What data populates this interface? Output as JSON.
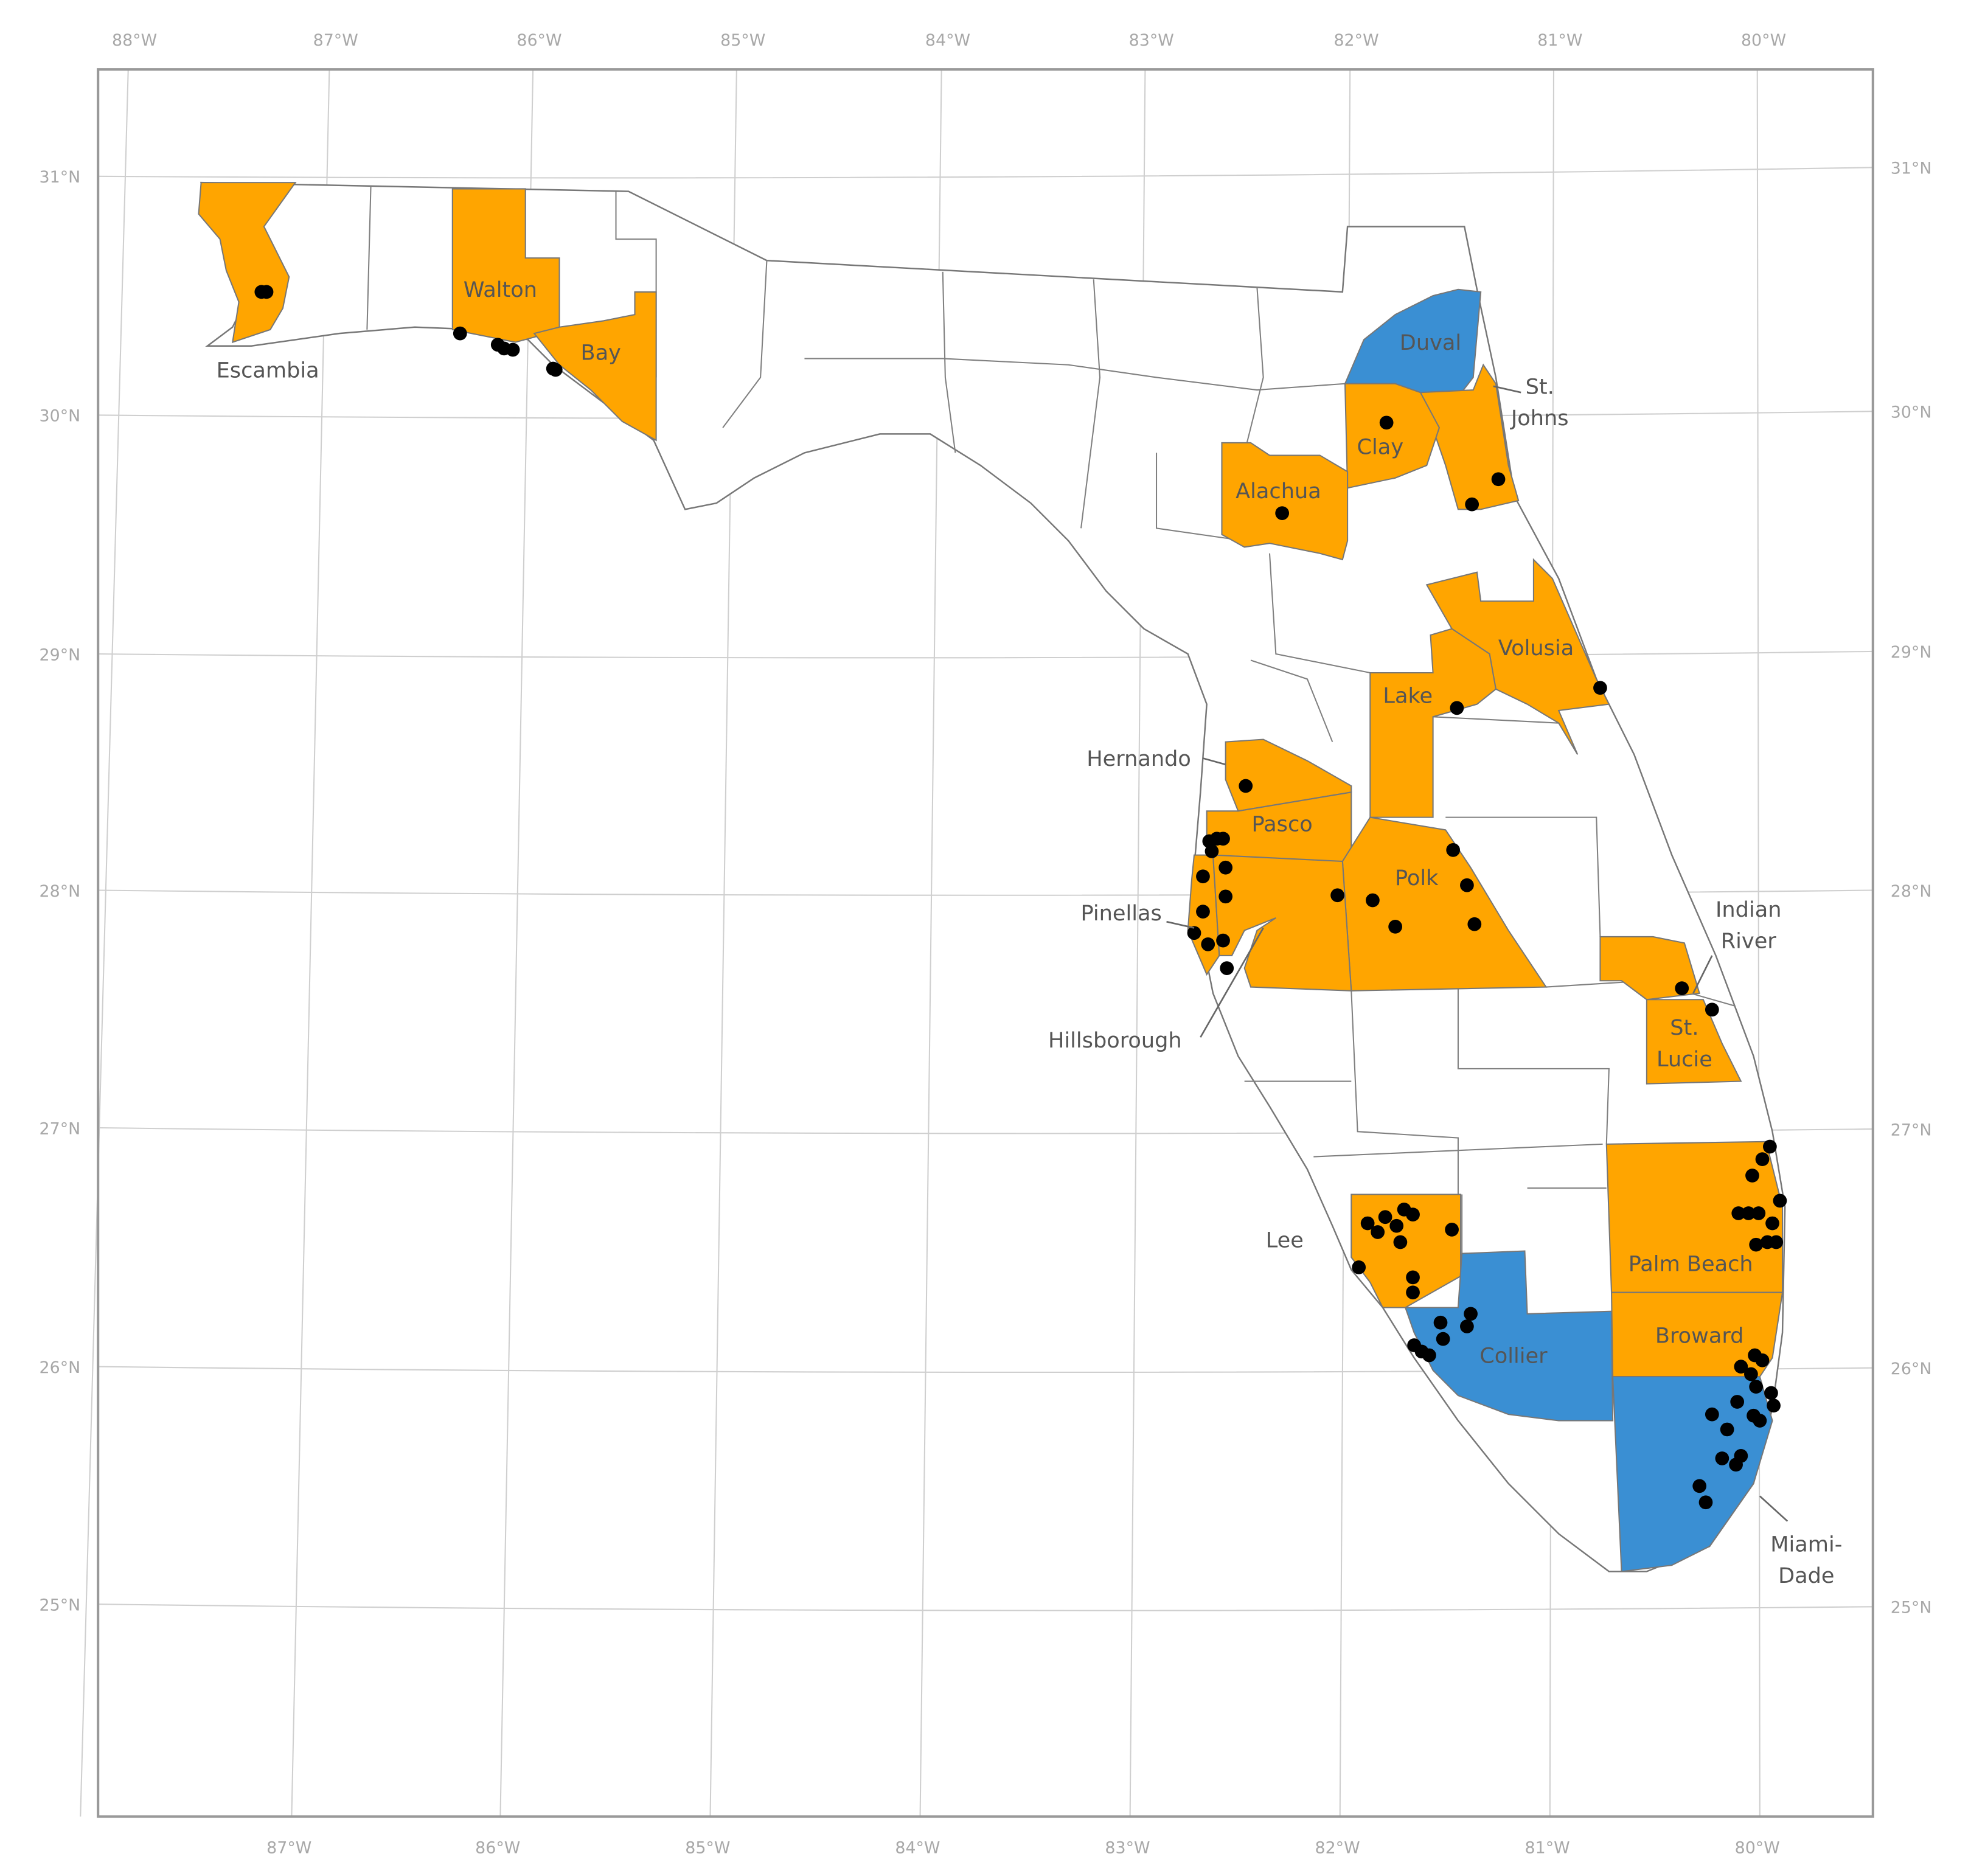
{
  "lon_labels_top": [
    "88°W",
    "87°W",
    "86°W",
    "85°W",
    "84°W",
    "83°W",
    "82°W",
    "81°W",
    "80°W"
  ],
  "lon_labels_bottom": [
    "87°W",
    "86°W",
    "85°W",
    "84°W",
    "83°W",
    "82°W",
    "81°W",
    "80°W"
  ],
  "lat_labels_left": [
    "31°N",
    "30°N",
    "29°N",
    "28°N",
    "27°N",
    "26°N",
    "25°N"
  ],
  "lat_labels_right": [
    "31°N",
    "30°N",
    "29°N",
    "28°N",
    "27°N",
    "26°N",
    "25°N"
  ],
  "counties": [
    {
      "lines": [
        "Escambia"
      ],
      "color": "#ffa500"
    },
    {
      "lines": [
        "Walton"
      ],
      "color": "#ffa500"
    },
    {
      "lines": [
        "Bay"
      ],
      "color": "#ffa500"
    },
    {
      "lines": [
        "Duval"
      ],
      "color": "#3a8fd3"
    },
    {
      "lines": [
        "St.",
        "Johns"
      ],
      "color": "#ffa500"
    },
    {
      "lines": [
        "Clay"
      ],
      "color": "#ffa500"
    },
    {
      "lines": [
        "Alachua"
      ],
      "color": "#ffa500"
    },
    {
      "lines": [
        "Volusia"
      ],
      "color": "#ffa500"
    },
    {
      "lines": [
        "Lake"
      ],
      "color": "#ffa500"
    },
    {
      "lines": [
        "Hernando"
      ],
      "color": "#ffa500"
    },
    {
      "lines": [
        "Pasco"
      ],
      "color": "#ffa500"
    },
    {
      "lines": [
        "Pinellas"
      ],
      "color": "#ffa500"
    },
    {
      "lines": [
        "Polk"
      ],
      "color": "#ffa500"
    },
    {
      "lines": [
        "Hillsborough"
      ],
      "color": "#ffa500"
    },
    {
      "lines": [
        "Indian",
        "River"
      ],
      "color": "#ffa500"
    },
    {
      "lines": [
        "St.",
        "Lucie"
      ],
      "color": "#ffa500"
    },
    {
      "lines": [
        "Lee"
      ],
      "color": "#ffa500"
    },
    {
      "lines": [
        "Palm Beach"
      ],
      "color": "#ffa500"
    },
    {
      "lines": [
        "Broward"
      ],
      "color": "#ffa500"
    },
    {
      "lines": [
        "Collier"
      ],
      "color": "#3a8fd3"
    },
    {
      "lines": [
        "Miami-",
        "Dade"
      ],
      "color": "#3a8fd3"
    }
  ]
}
